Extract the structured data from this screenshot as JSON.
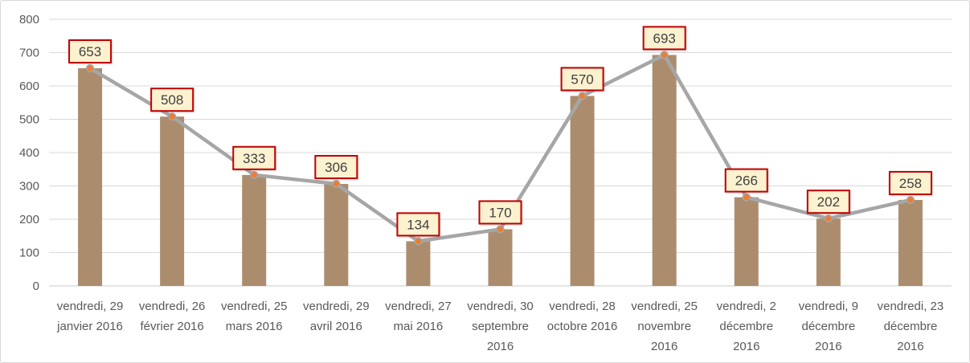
{
  "chart_data": {
    "type": "bar",
    "overlay": "line-with-markers",
    "title": "",
    "legend": "none",
    "grid": "horizontal",
    "categories": [
      "vendredi, 29 janvier 2016",
      "vendredi, 26 février 2016",
      "vendredi, 25 mars 2016",
      "vendredi, 29 avril 2016",
      "vendredi, 27 mai 2016",
      "vendredi, 30 septembre 2016",
      "vendredi, 28 octobre 2016",
      "vendredi, 25 novembre 2016",
      "vendredi, 2 décembre 2016",
      "vendredi, 9 décembre 2016",
      "vendredi, 23 décembre 2016"
    ],
    "category_label_lines": [
      [
        "vendredi, 29",
        "janvier 2016"
      ],
      [
        "vendredi, 26",
        "février 2016"
      ],
      [
        "vendredi, 25",
        "mars 2016"
      ],
      [
        "vendredi, 29",
        "avril 2016"
      ],
      [
        "vendredi, 27",
        "mai 2016"
      ],
      [
        "vendredi, 30",
        "septembre",
        "2016"
      ],
      [
        "vendredi, 28",
        "octobre 2016"
      ],
      [
        "vendredi, 25",
        "novembre",
        "2016"
      ],
      [
        "vendredi, 2",
        "décembre",
        "2016"
      ],
      [
        "vendredi, 9",
        "décembre",
        "2016"
      ],
      [
        "vendredi, 23",
        "décembre",
        "2016"
      ]
    ],
    "values": [
      653,
      508,
      333,
      306,
      134,
      170,
      570,
      693,
      266,
      202,
      258
    ],
    "data_labels": [
      "653",
      "508",
      "333",
      "306",
      "134",
      "170",
      "570",
      "693",
      "266",
      "202",
      "258"
    ],
    "xlabel": "",
    "ylabel": "",
    "ylim": [
      0,
      800
    ],
    "yticks": [
      0,
      100,
      200,
      300,
      400,
      500,
      600,
      700,
      800
    ],
    "colors": {
      "bar": "#ab8d6e",
      "line": "#a6a6a6",
      "marker": "#ed7d31",
      "marker_ring": "#a6a6a6",
      "label_bg": "#fdf2d0",
      "label_border": "#c00000",
      "label_text": "#404040",
      "axis_text": "#595959",
      "gridline": "#d9d9d9",
      "baseline": "#c9c9c9",
      "background": "#ffffff",
      "frame": "#d9d9d9"
    }
  }
}
